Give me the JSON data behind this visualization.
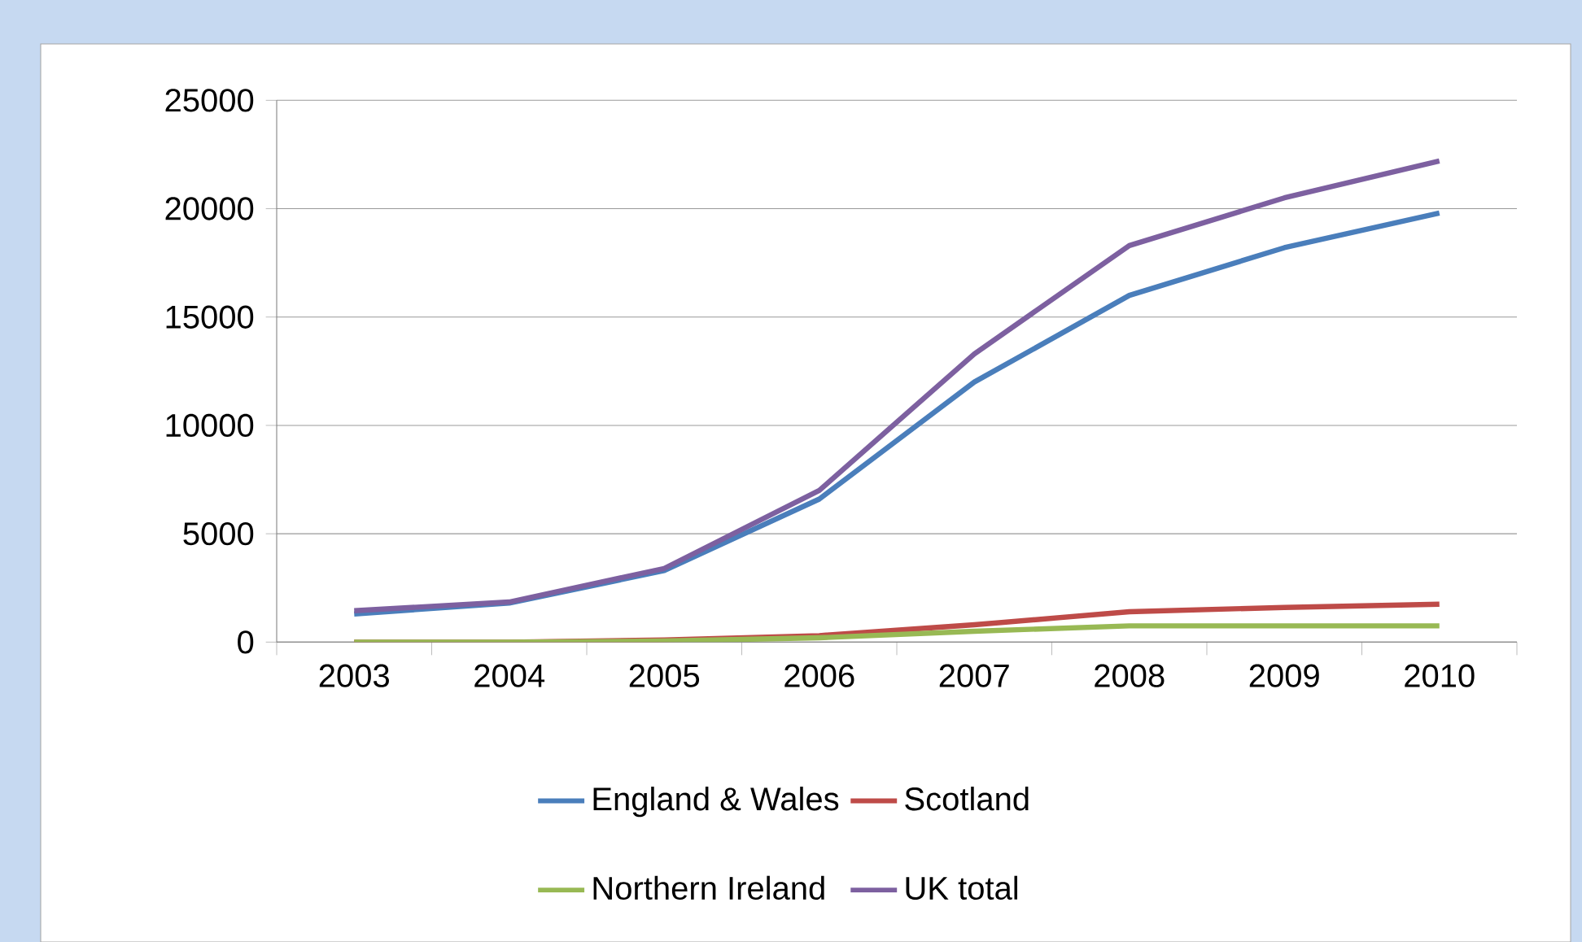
{
  "chart_data": {
    "type": "line",
    "categories": [
      "2003",
      "2004",
      "2005",
      "2006",
      "2007",
      "2008",
      "2009",
      "2010"
    ],
    "series": [
      {
        "name": "England & Wales",
        "color": "#4a7ebb",
        "values": [
          1300,
          1800,
          3300,
          6600,
          12000,
          16000,
          18200,
          19800
        ]
      },
      {
        "name": "Scotland",
        "color": "#be4b48",
        "values": [
          0,
          0,
          100,
          300,
          800,
          1400,
          1600,
          1750
        ]
      },
      {
        "name": "Northern Ireland",
        "color": "#98b954",
        "values": [
          0,
          0,
          50,
          200,
          500,
          750,
          750,
          750
        ]
      },
      {
        "name": "UK total",
        "color": "#7d60a0",
        "values": [
          1450,
          1850,
          3400,
          7000,
          13300,
          18300,
          20500,
          22200
        ]
      }
    ],
    "ylim": [
      0,
      25000
    ],
    "yticks": [
      0,
      5000,
      10000,
      15000,
      20000,
      25000
    ],
    "grid": "y",
    "legend": "bottom",
    "marker": "none",
    "line_style": "solid"
  }
}
